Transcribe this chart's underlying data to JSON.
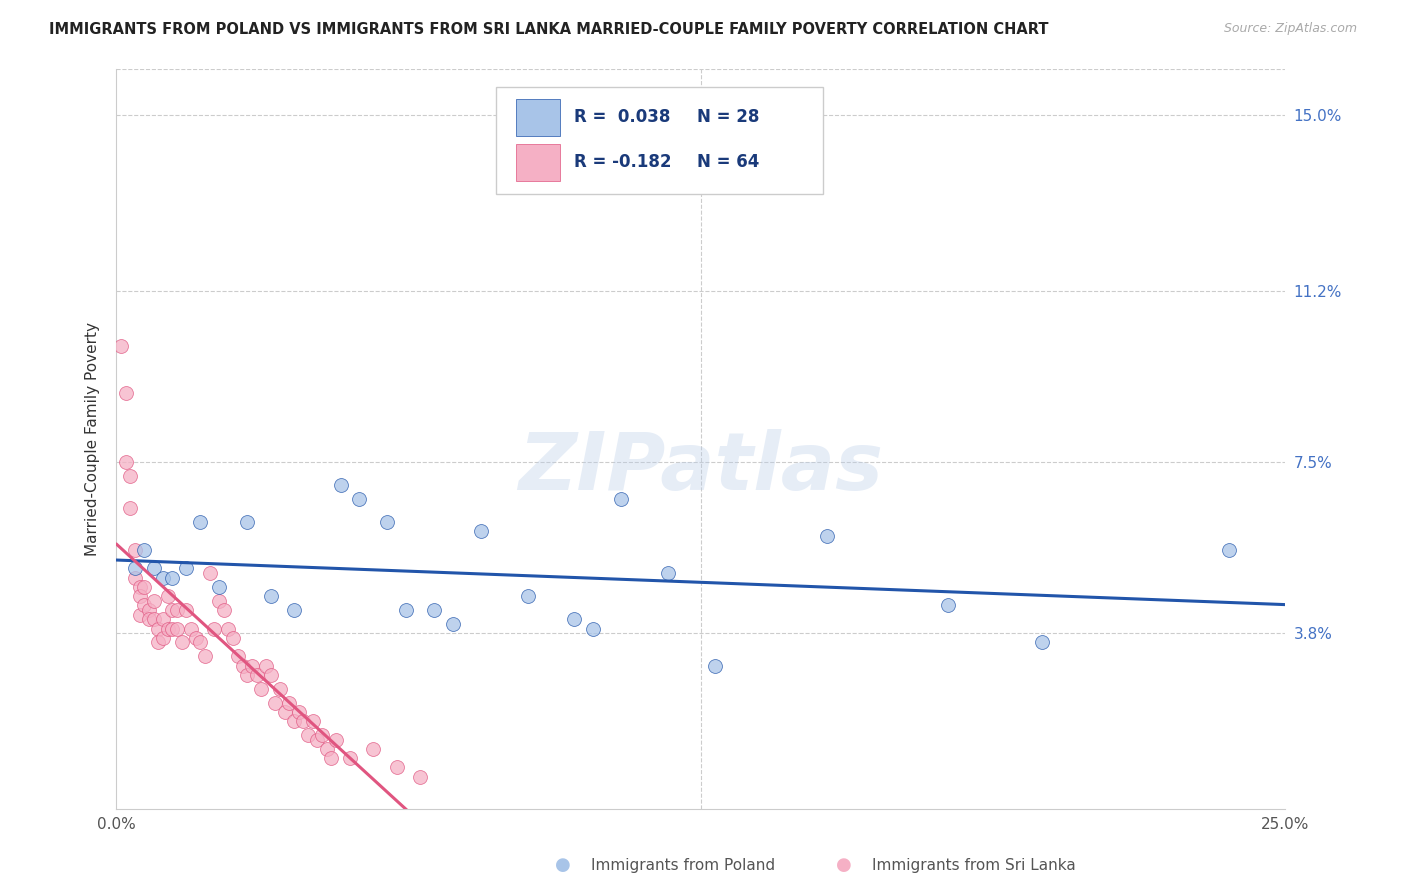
{
  "title": "IMMIGRANTS FROM POLAND VS IMMIGRANTS FROM SRI LANKA MARRIED-COUPLE FAMILY POVERTY CORRELATION CHART",
  "source": "Source: ZipAtlas.com",
  "ylabel": "Married-Couple Family Poverty",
  "ytick_values": [
    0.038,
    0.075,
    0.112,
    0.15
  ],
  "ytick_labels": [
    "3.8%",
    "7.5%",
    "11.2%",
    "15.0%"
  ],
  "xmin": 0.0,
  "xmax": 0.25,
  "ymin": 0.0,
  "ymax": 0.16,
  "poland_color": "#a8c4e8",
  "srilanka_color": "#f5b0c5",
  "poland_line_color": "#2255aa",
  "srilanka_line_color": "#e05580",
  "watermark_text": "ZIPatlas",
  "background_color": "#ffffff",
  "grid_color": "#cccccc",
  "poland_scatter_x": [
    0.004,
    0.006,
    0.008,
    0.01,
    0.012,
    0.015,
    0.018,
    0.022,
    0.028,
    0.033,
    0.038,
    0.048,
    0.052,
    0.058,
    0.062,
    0.068,
    0.072,
    0.078,
    0.088,
    0.098,
    0.102,
    0.108,
    0.118,
    0.128,
    0.152,
    0.178,
    0.198,
    0.238
  ],
  "poland_scatter_y": [
    0.052,
    0.056,
    0.052,
    0.05,
    0.05,
    0.052,
    0.062,
    0.048,
    0.062,
    0.046,
    0.043,
    0.07,
    0.067,
    0.062,
    0.043,
    0.043,
    0.04,
    0.06,
    0.046,
    0.041,
    0.039,
    0.067,
    0.051,
    0.031,
    0.059,
    0.044,
    0.036,
    0.056
  ],
  "srilanka_scatter_x": [
    0.001,
    0.002,
    0.002,
    0.003,
    0.003,
    0.004,
    0.004,
    0.005,
    0.005,
    0.005,
    0.006,
    0.006,
    0.007,
    0.007,
    0.008,
    0.008,
    0.009,
    0.009,
    0.01,
    0.01,
    0.011,
    0.011,
    0.012,
    0.012,
    0.013,
    0.013,
    0.014,
    0.015,
    0.016,
    0.017,
    0.018,
    0.019,
    0.02,
    0.021,
    0.022,
    0.023,
    0.024,
    0.025,
    0.026,
    0.027,
    0.028,
    0.029,
    0.03,
    0.031,
    0.032,
    0.033,
    0.034,
    0.035,
    0.036,
    0.037,
    0.038,
    0.039,
    0.04,
    0.041,
    0.042,
    0.043,
    0.044,
    0.045,
    0.046,
    0.047,
    0.05,
    0.055,
    0.06,
    0.065
  ],
  "srilanka_scatter_y": [
    0.1,
    0.09,
    0.075,
    0.072,
    0.065,
    0.056,
    0.05,
    0.048,
    0.046,
    0.042,
    0.048,
    0.044,
    0.043,
    0.041,
    0.045,
    0.041,
    0.039,
    0.036,
    0.041,
    0.037,
    0.039,
    0.046,
    0.043,
    0.039,
    0.043,
    0.039,
    0.036,
    0.043,
    0.039,
    0.037,
    0.036,
    0.033,
    0.051,
    0.039,
    0.045,
    0.043,
    0.039,
    0.037,
    0.033,
    0.031,
    0.029,
    0.031,
    0.029,
    0.026,
    0.031,
    0.029,
    0.023,
    0.026,
    0.021,
    0.023,
    0.019,
    0.021,
    0.019,
    0.016,
    0.019,
    0.015,
    0.016,
    0.013,
    0.011,
    0.015,
    0.011,
    0.013,
    0.009,
    0.007
  ],
  "legend_line1_r": "R =  0.038",
  "legend_line1_n": "N = 28",
  "legend_line2_r": "R = -0.182",
  "legend_line2_n": "N = 64",
  "bottom_legend_poland": "Immigrants from Poland",
  "bottom_legend_srilanka": "Immigrants from Sri Lanka"
}
